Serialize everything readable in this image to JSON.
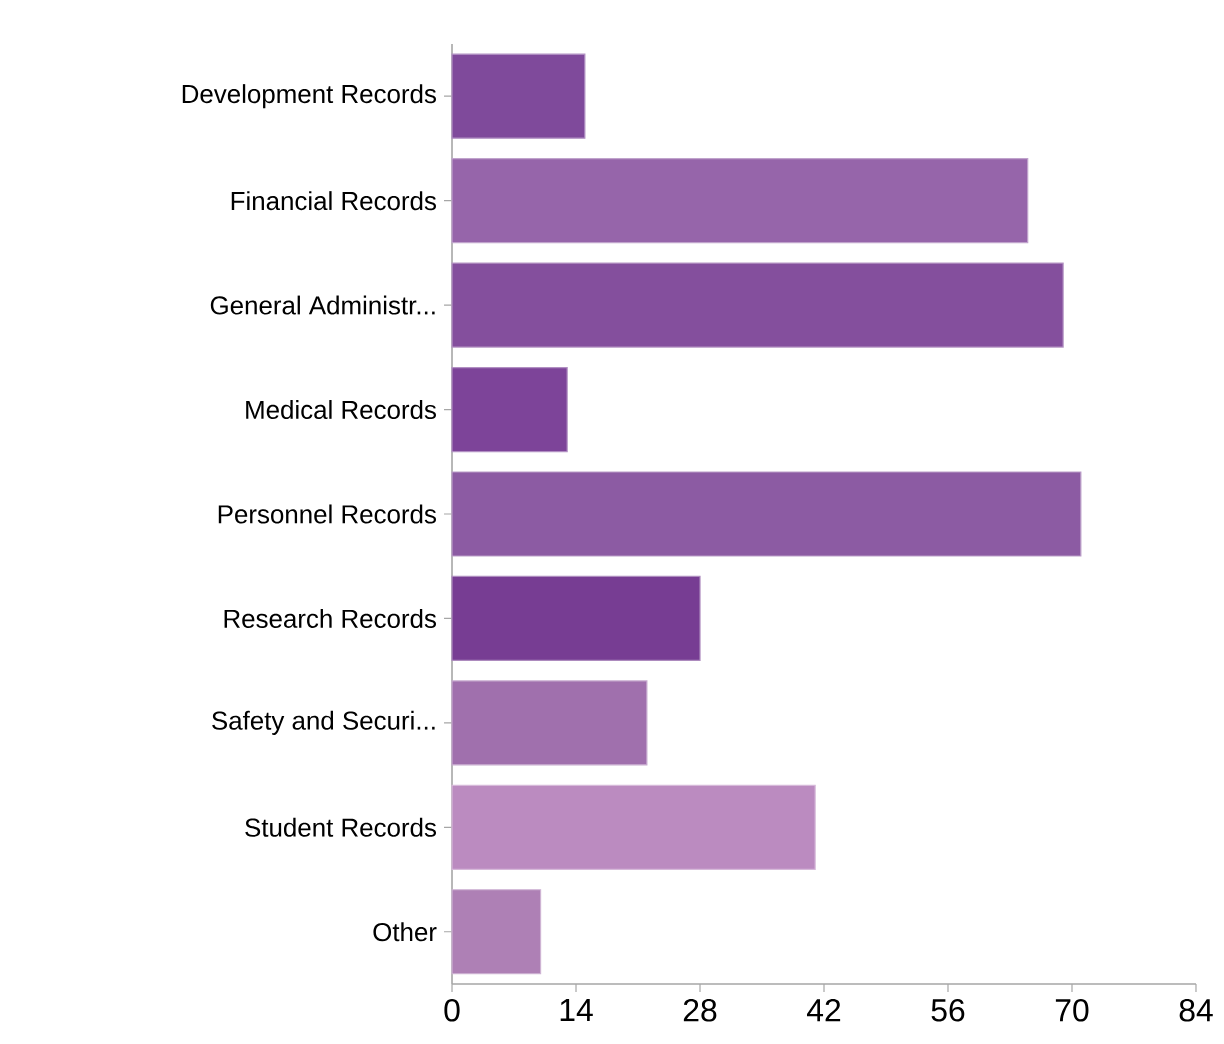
{
  "chart_data": {
    "type": "bar",
    "orientation": "horizontal",
    "categories": [
      "Development Records",
      "Financial Records",
      "General Administr...",
      "Medical Records",
      "Personnel Records",
      "Research Records",
      "Safety and Securi...",
      "Student Records",
      "Other"
    ],
    "values": [
      15,
      65,
      69,
      13,
      71,
      28,
      22,
      41,
      10
    ],
    "colors": [
      "#7f4a9b",
      "#9665aa",
      "#844f9d",
      "#7d4499",
      "#8c5ba3",
      "#773d93",
      "#a070ad",
      "#bb8bc0",
      "#ae80b5"
    ],
    "xlim": [
      0,
      84
    ],
    "xticks": [
      0,
      14,
      28,
      42,
      56,
      70,
      84
    ]
  }
}
